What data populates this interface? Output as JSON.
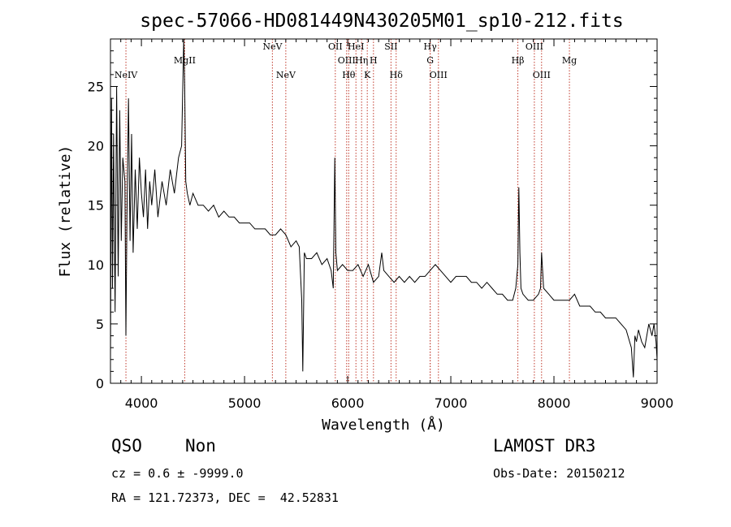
{
  "chart_data": {
    "type": "line",
    "title": "spec-57066-HD081449N430205M01_sp10-212.fits",
    "xlabel": "Wavelength (Å)",
    "ylabel": "Flux (relative)",
    "xlim": [
      3700,
      9000
    ],
    "ylim": [
      0,
      29
    ],
    "x_ticks": [
      4000,
      5000,
      6000,
      7000,
      8000,
      9000
    ],
    "y_ticks": [
      0,
      5,
      10,
      15,
      20,
      25
    ],
    "grid": false,
    "line_color": "#000000",
    "marker_color": "#c0392b",
    "series": [
      {
        "x": [
          3700,
          3710,
          3720,
          3730,
          3745,
          3760,
          3775,
          3790,
          3805,
          3820,
          3840,
          3850,
          3860,
          3875,
          3890,
          3905,
          3920,
          3940,
          3960,
          3980,
          4000,
          4020,
          4040,
          4060,
          4080,
          4100,
          4130,
          4160,
          4200,
          4240,
          4280,
          4320,
          4360,
          4390,
          4410,
          4420,
          4430,
          4445,
          4470,
          4500,
          4550,
          4600,
          4650,
          4700,
          4750,
          4800,
          4850,
          4900,
          4950,
          5000,
          5050,
          5100,
          5150,
          5200,
          5250,
          5300,
          5350,
          5400,
          5450,
          5500,
          5530,
          5555,
          5565,
          5580,
          5600,
          5650,
          5700,
          5750,
          5800,
          5840,
          5860,
          5875,
          5885,
          5900,
          5950,
          6000,
          6050,
          6100,
          6150,
          6200,
          6250,
          6300,
          6330,
          6350,
          6400,
          6450,
          6500,
          6550,
          6600,
          6650,
          6700,
          6750,
          6800,
          6850,
          6900,
          6950,
          7000,
          7050,
          7100,
          7150,
          7200,
          7250,
          7300,
          7350,
          7400,
          7450,
          7500,
          7550,
          7600,
          7630,
          7650,
          7660,
          7670,
          7680,
          7700,
          7750,
          7800,
          7850,
          7870,
          7880,
          7900,
          7950,
          8000,
          8050,
          8100,
          8150,
          8200,
          8250,
          8300,
          8350,
          8400,
          8450,
          8500,
          8550,
          8600,
          8650,
          8700,
          8750,
          8770,
          8785,
          8800,
          8820,
          8850,
          8880,
          8900,
          8920,
          8950,
          8970,
          8990,
          9000
        ],
        "y": [
          2,
          24,
          8,
          21,
          6,
          25,
          9,
          23,
          12,
          19,
          17,
          4,
          14,
          24,
          12,
          21,
          11,
          18,
          13,
          19,
          16,
          14,
          18,
          13,
          17,
          15,
          18,
          14,
          17,
          15,
          18,
          16,
          19,
          20,
          29,
          25,
          17,
          16,
          15,
          16,
          15,
          15,
          14.5,
          15,
          14,
          14.5,
          14,
          14,
          13.5,
          13.5,
          13.5,
          13,
          13,
          13,
          12.5,
          12.5,
          13,
          12.5,
          11.5,
          12,
          11.5,
          7,
          1,
          11,
          10.5,
          10.5,
          11,
          10,
          10.5,
          9.5,
          8,
          19,
          11,
          9.5,
          10,
          9.5,
          9.5,
          10,
          9,
          10,
          8.5,
          9,
          11,
          9.5,
          9,
          8.5,
          9,
          8.5,
          9,
          8.5,
          9,
          9,
          9.5,
          10,
          9.5,
          9,
          8.5,
          9,
          9,
          9,
          8.5,
          8.5,
          8,
          8.5,
          8,
          7.5,
          7.5,
          7,
          7,
          8,
          10,
          16.5,
          11,
          8,
          7.5,
          7,
          7,
          7.5,
          8,
          11,
          8,
          7.5,
          7,
          7,
          7,
          7,
          7.5,
          6.5,
          6.5,
          6.5,
          6,
          6,
          5.5,
          5.5,
          5.5,
          5,
          4.5,
          3,
          0.5,
          4,
          3.5,
          4.5,
          3.5,
          3,
          4,
          5,
          4,
          5,
          3.5,
          2
        ]
      }
    ],
    "lines": [
      {
        "label": "NeIV",
        "x": 3850,
        "row": 3
      },
      {
        "label": "MgII",
        "x": 4420,
        "row": 1
      },
      {
        "label": "NeV",
        "x": 5270,
        "row": 0
      },
      {
        "label": "NeV",
        "x": 5400,
        "row": 3
      },
      {
        "label": "OII",
        "x": 5880,
        "row": 0
      },
      {
        "label": "OIII",
        "x": 5990,
        "row": 1
      },
      {
        "label": "Hθ",
        "x": 6010,
        "row": 2
      },
      {
        "label": "HeI",
        "x": 6080,
        "row": 0
      },
      {
        "label": "Hη",
        "x": 6135,
        "row": 1
      },
      {
        "label": "K",
        "x": 6190,
        "row": 2
      },
      {
        "label": "H",
        "x": 6250,
        "row": 1
      },
      {
        "label": "SII",
        "x": 6420,
        "row": 0
      },
      {
        "label": "Hδ",
        "x": 6470,
        "row": 2
      },
      {
        "label": "Hγ",
        "x": 6800,
        "row": 0
      },
      {
        "label": "G",
        "x": 6800,
        "row": 1
      },
      {
        "label": "OIII",
        "x": 6880,
        "row": 2
      },
      {
        "label": "Hβ",
        "x": 7650,
        "row": 1
      },
      {
        "label": "OIII",
        "x": 7810,
        "row": 0
      },
      {
        "label": "OIII",
        "x": 7880,
        "row": 2
      },
      {
        "label": "Mg",
        "x": 8150,
        "row": 1
      }
    ]
  },
  "info": {
    "class": "QSO",
    "subclass": "Non",
    "cz": "cz = 0.6 ± -9999.0",
    "radec": "RA = 121.72373, DEC =  42.52831",
    "survey": "LAMOST DR3",
    "obsdate": "Obs-Date: 20150212"
  }
}
